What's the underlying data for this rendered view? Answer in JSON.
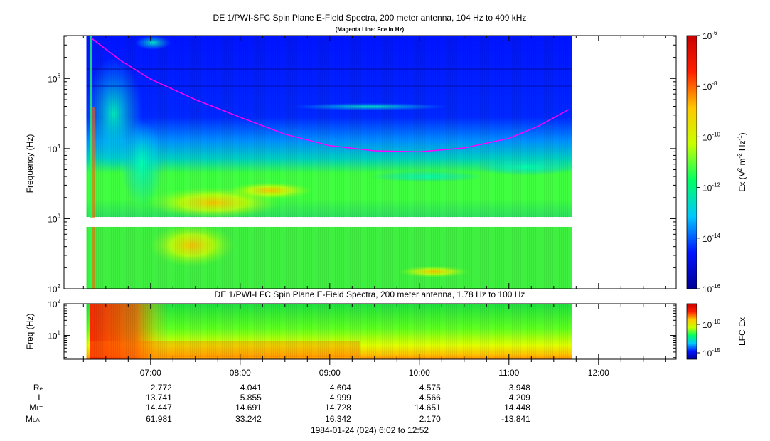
{
  "chart_data": [
    {
      "type": "heatmap",
      "title": "DE 1/PWI-SFC  Spin Plane E-Field Spectra, 200 meter antenna, 104 Hz to 409 kHz",
      "subtitle": "(Magenta Line: Fce in Hz)",
      "ylabel": "Frequency (Hz)",
      "y_scale": "log",
      "ylim": [
        100,
        409000
      ],
      "y_ticks": [
        "10^2",
        "10^3",
        "10^4",
        "10^5"
      ],
      "colorbar": {
        "label": "Ex (V^2 m^-2 Hz^-1)",
        "scale": "log",
        "range": [
          1e-16,
          1e-06
        ],
        "ticks": [
          "10^-6",
          "10^-8",
          "10^-10",
          "10^-12",
          "10^-14",
          "10^-16"
        ],
        "colors": [
          "#000096",
          "#0014ff",
          "#00c8ff",
          "#00ff64",
          "#c8ff00",
          "#ffc800",
          "#ff1e00",
          "#c80000"
        ]
      },
      "fce_line": {
        "color": "#ff00ff",
        "x": [
          "06:20",
          "06:40",
          "07:00",
          "07:30",
          "08:00",
          "08:30",
          "09:00",
          "09:30",
          "10:00",
          "10:30",
          "11:00",
          "11:20",
          "11:40"
        ],
        "y": [
          380000,
          180000,
          98000,
          50000,
          28000,
          16000,
          11000,
          9300,
          9000,
          10200,
          14000,
          21000,
          36000
        ]
      },
      "data_coverage_time": [
        "06:17",
        "11:42"
      ]
    },
    {
      "type": "heatmap",
      "title": "DE 1/PWI-LFC  Spin Plane E-Field Spectra, 200 meter antenna, 1.78 Hz to 100 Hz",
      "ylabel": "Freq (Hz)",
      "y_scale": "log",
      "ylim": [
        1.78,
        100
      ],
      "y_ticks": [
        "10^1",
        "10^2"
      ],
      "colorbar": {
        "label": "LFC Ex",
        "scale": "log",
        "ticks": [
          "10^-10",
          "10^-15"
        ]
      },
      "data_coverage_time": [
        "06:17",
        "11:42"
      ]
    }
  ],
  "time_axis": {
    "ticks": [
      "07:00",
      "08:00",
      "09:00",
      "10:00",
      "11:00",
      "12:00"
    ],
    "range": [
      "06:02",
      "12:52"
    ],
    "caption": "1984-01-24 (024) 6:02 to 12:52"
  },
  "ephemeris": {
    "rows": [
      {
        "label": "R",
        "sub": "e",
        "values": [
          "2.772",
          "4.041",
          "4.604",
          "4.575",
          "3.948"
        ]
      },
      {
        "label": "L",
        "sub": "",
        "values": [
          "13.741",
          "5.855",
          "4.999",
          "4.566",
          "4.209"
        ]
      },
      {
        "label": "M",
        "sub": "LT",
        "values": [
          "14.447",
          "14.691",
          "14.728",
          "14.651",
          "14.448"
        ]
      },
      {
        "label": "M",
        "sub": "LAT",
        "values": [
          "61.981",
          "33.242",
          "16.342",
          "2.170",
          "-13.841"
        ]
      }
    ]
  }
}
